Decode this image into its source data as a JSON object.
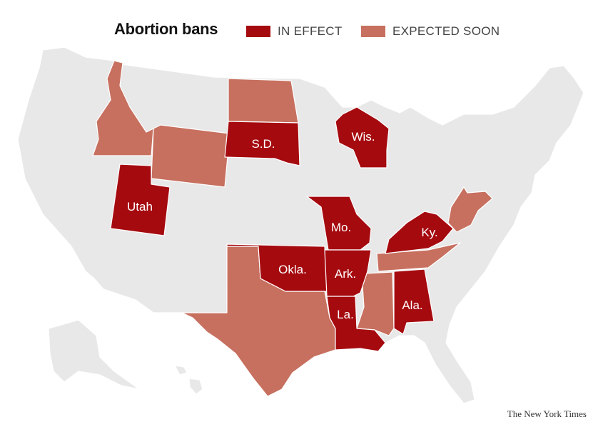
{
  "title": "Abortion bans",
  "legend": {
    "in_effect": {
      "label": "IN EFFECT",
      "color": "#a50a0f"
    },
    "expected_soon": {
      "label": "EXPECTED SOON",
      "color": "#c7705f"
    },
    "no_ban": {
      "color": "#e8e8e8"
    }
  },
  "credit": "The New York Times",
  "states": {
    "in_effect": [
      "S.D.",
      "Wis.",
      "Utah",
      "Mo.",
      "Ky.",
      "Okla.",
      "Ark.",
      "La.",
      "Ala."
    ],
    "expected_soon": [
      "Idaho",
      "Wyoming",
      "North Dakota",
      "Texas",
      "Tennessee",
      "Mississippi",
      "West Virginia"
    ]
  },
  "labels": {
    "sd": "S.D.",
    "wis": "Wis.",
    "utah": "Utah",
    "mo": "Mo.",
    "ky": "Ky.",
    "okla": "Okla.",
    "ark": "Ark.",
    "la": "La.",
    "ala": "Ala."
  }
}
